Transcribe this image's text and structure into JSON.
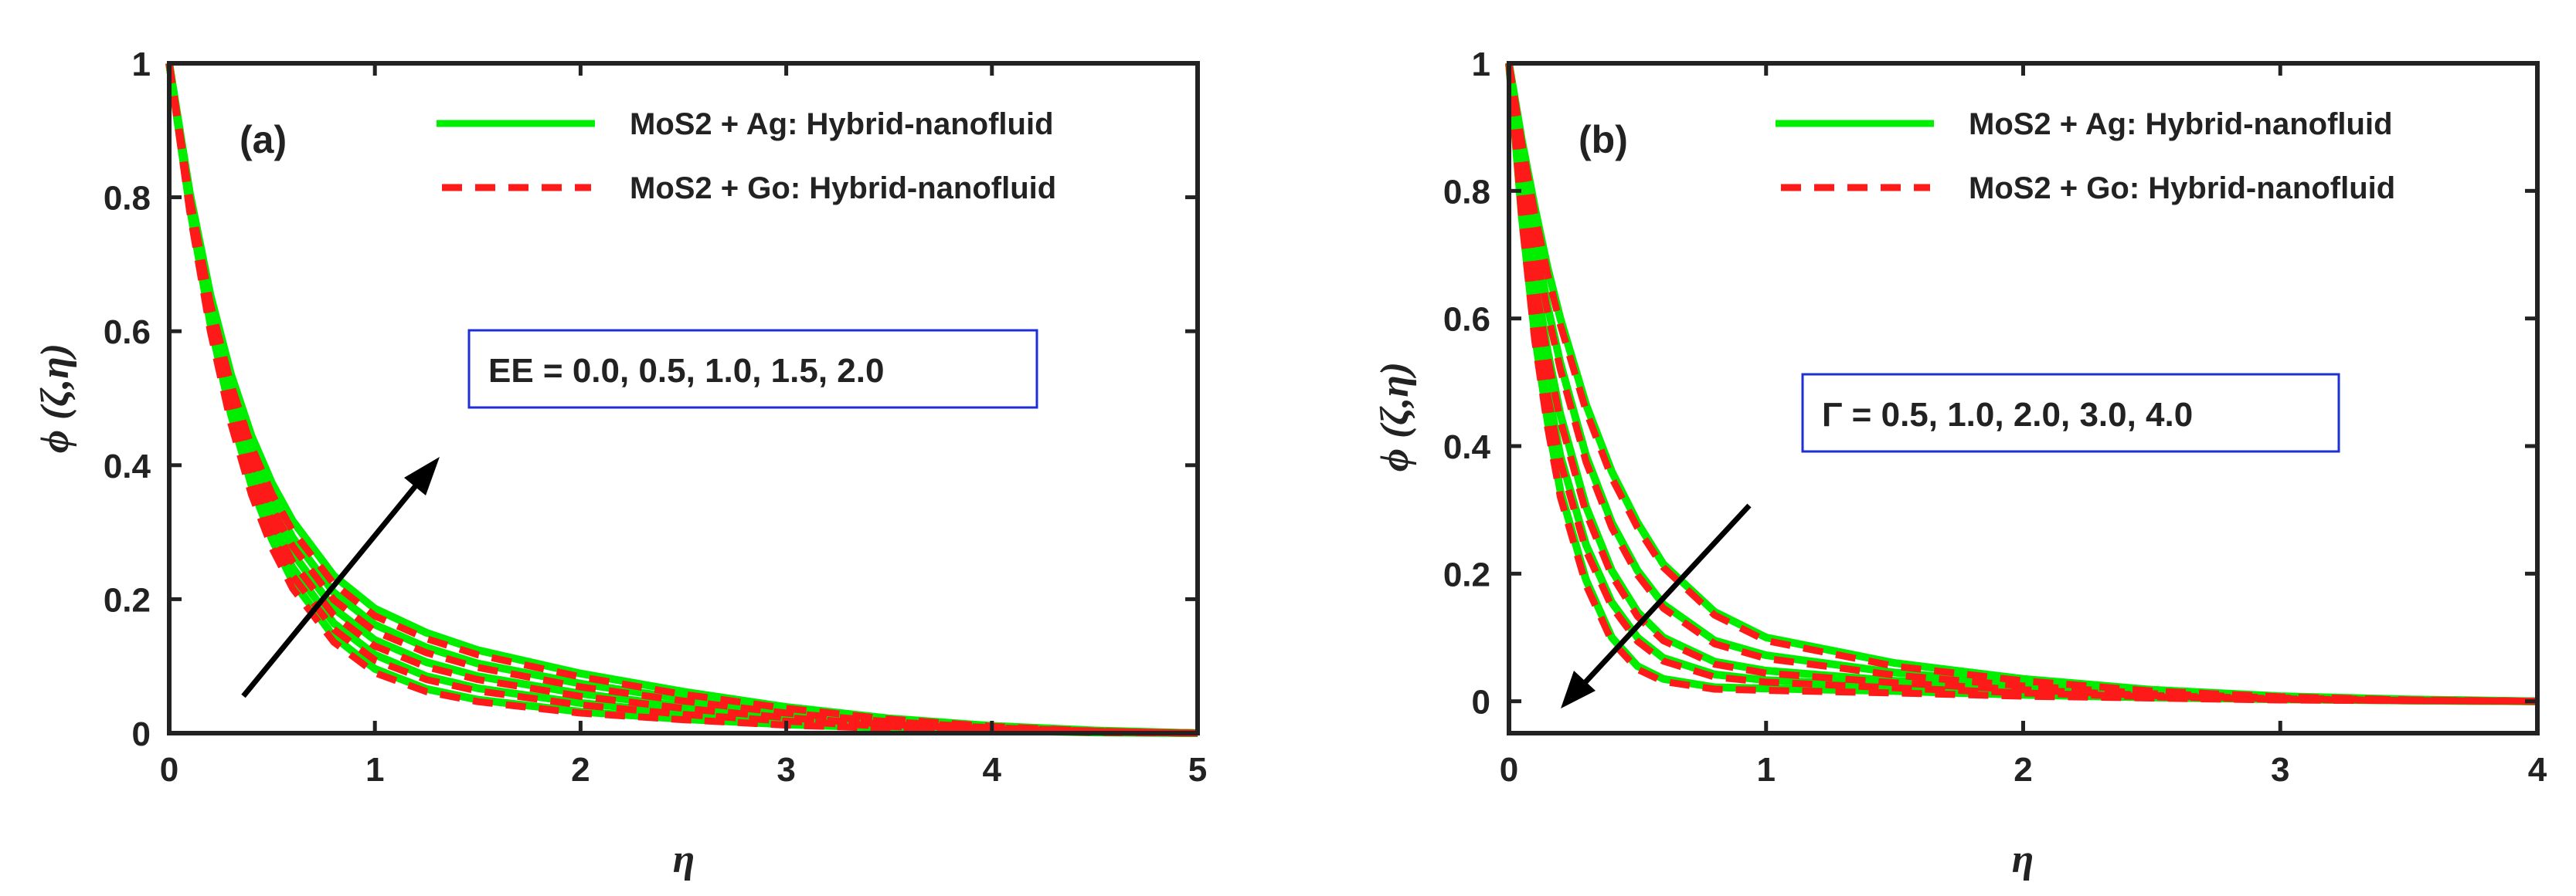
{
  "chart_data": [
    {
      "type": "line",
      "panel_label": "(a)",
      "xlabel": "η",
      "ylabel": "ϕ (ζ,η)",
      "xlim": [
        0,
        5
      ],
      "ylim": [
        0,
        1
      ],
      "xticks": [
        "0",
        "1",
        "2",
        "3",
        "4",
        "5"
      ],
      "yticks": [
        "0",
        "0.2",
        "0.4",
        "0.6",
        "0.8",
        "1"
      ],
      "legend": [
        "MoS2 + Ag: Hybrid-nanofluid",
        "MoS2 + Go: Hybrid-nanofluid"
      ],
      "annotation": "EE = 0.0, 0.5, 1.0, 1.5, 2.0",
      "arrow_direction": "increasing",
      "x": [
        0,
        0.1,
        0.2,
        0.3,
        0.4,
        0.5,
        0.6,
        0.8,
        1.0,
        1.25,
        1.5,
        2.0,
        2.5,
        3.0,
        3.5,
        4.0,
        4.5,
        5.0
      ],
      "series": [
        {
          "name": "MoS2 + Ag: Hybrid-nanofluid, EE = 0.0",
          "values": [
            1.0,
            0.785,
            0.612,
            0.476,
            0.37,
            0.289,
            0.227,
            0.144,
            0.096,
            0.066,
            0.05,
            0.032,
            0.021,
            0.013,
            0.008,
            0.004,
            0.001,
            0
          ]
        },
        {
          "name": "MoS2 + Ag: Hybrid-nanofluid, EE = 0.5",
          "values": [
            1.0,
            0.79,
            0.622,
            0.49,
            0.387,
            0.308,
            0.247,
            0.164,
            0.117,
            0.085,
            0.067,
            0.045,
            0.03,
            0.019,
            0.011,
            0.005,
            0.002,
            0
          ]
        },
        {
          "name": "MoS2 + Ag: Hybrid-nanofluid, EE = 1.0",
          "values": [
            1.0,
            0.796,
            0.633,
            0.505,
            0.405,
            0.328,
            0.269,
            0.186,
            0.139,
            0.106,
            0.085,
            0.059,
            0.04,
            0.025,
            0.014,
            0.007,
            0.002,
            0
          ]
        },
        {
          "name": "MoS2 + Ag: Hybrid-nanofluid, EE = 1.5",
          "values": [
            1.0,
            0.801,
            0.643,
            0.52,
            0.424,
            0.35,
            0.292,
            0.21,
            0.162,
            0.128,
            0.104,
            0.074,
            0.051,
            0.032,
            0.018,
            0.009,
            0.003,
            0
          ]
        },
        {
          "name": "MoS2 + Ag: Hybrid-nanofluid, EE = 2.0",
          "values": [
            1.0,
            0.807,
            0.655,
            0.536,
            0.444,
            0.373,
            0.317,
            0.235,
            0.186,
            0.15,
            0.124,
            0.089,
            0.062,
            0.039,
            0.022,
            0.011,
            0.004,
            0
          ]
        },
        {
          "name": "MoS2 + Go: Hybrid-nanofluid, EE = 0.0",
          "values": [
            1.0,
            0.778,
            0.6,
            0.462,
            0.356,
            0.276,
            0.216,
            0.136,
            0.09,
            0.062,
            0.047,
            0.03,
            0.02,
            0.012,
            0.007,
            0.004,
            0.001,
            0
          ]
        },
        {
          "name": "MoS2 + Go: Hybrid-nanofluid, EE = 0.5",
          "values": [
            1.0,
            0.783,
            0.61,
            0.476,
            0.373,
            0.295,
            0.235,
            0.155,
            0.109,
            0.08,
            0.063,
            0.042,
            0.028,
            0.018,
            0.01,
            0.005,
            0.002,
            0
          ]
        },
        {
          "name": "MoS2 + Go: Hybrid-nanofluid, EE = 1.0",
          "values": [
            1.0,
            0.789,
            0.621,
            0.491,
            0.391,
            0.315,
            0.256,
            0.176,
            0.13,
            0.099,
            0.08,
            0.055,
            0.037,
            0.023,
            0.013,
            0.006,
            0.002,
            0
          ]
        },
        {
          "name": "MoS2 + Go: Hybrid-nanofluid, EE = 1.5",
          "values": [
            1.0,
            0.794,
            0.631,
            0.506,
            0.409,
            0.336,
            0.279,
            0.199,
            0.152,
            0.12,
            0.098,
            0.069,
            0.048,
            0.03,
            0.017,
            0.008,
            0.003,
            0
          ]
        },
        {
          "name": "MoS2 + Go: Hybrid-nanofluid, EE = 2.0",
          "values": [
            1.0,
            0.8,
            0.642,
            0.521,
            0.428,
            0.357,
            0.302,
            0.223,
            0.175,
            0.141,
            0.117,
            0.084,
            0.058,
            0.037,
            0.021,
            0.01,
            0.003,
            0
          ]
        }
      ]
    },
    {
      "type": "line",
      "panel_label": "(b)",
      "xlabel": "η",
      "ylabel": "ϕ (ζ,η)",
      "xlim": [
        0,
        4
      ],
      "ylim": [
        -0.05,
        1
      ],
      "xticks": [
        "0",
        "1",
        "2",
        "3",
        "4"
      ],
      "yticks": [
        "0",
        "0.2",
        "0.4",
        "0.6",
        "0.8",
        "1"
      ],
      "legend": [
        "MoS2 + Ag: Hybrid-nanofluid",
        "MoS2 + Go: Hybrid-nanofluid"
      ],
      "annotation": "Γ = 0.5, 1.0, 2.0, 3.0, 4.0",
      "arrow_direction": "decreasing",
      "x": [
        0,
        0.05,
        0.1,
        0.15,
        0.2,
        0.3,
        0.4,
        0.5,
        0.6,
        0.8,
        1.0,
        1.5,
        2.0,
        2.5,
        3.0,
        3.5,
        4.0
      ],
      "series": [
        {
          "name": "MoS2 + Ag: Hybrid-nanofluid, Γ = 0.5",
          "values": [
            1.0,
            0.88,
            0.775,
            0.68,
            0.6,
            0.465,
            0.36,
            0.28,
            0.215,
            0.14,
            0.1,
            0.06,
            0.035,
            0.018,
            0.008,
            0.003,
            0
          ]
        },
        {
          "name": "MoS2 + Ag: Hybrid-nanofluid, Γ = 1.0",
          "values": [
            1.0,
            0.855,
            0.73,
            0.62,
            0.53,
            0.385,
            0.28,
            0.205,
            0.152,
            0.095,
            0.072,
            0.045,
            0.027,
            0.014,
            0.006,
            0.002,
            0
          ]
        },
        {
          "name": "MoS2 + Ag: Hybrid-nanofluid, Γ = 2.0",
          "values": [
            1.0,
            0.82,
            0.67,
            0.55,
            0.45,
            0.305,
            0.205,
            0.14,
            0.1,
            0.062,
            0.048,
            0.032,
            0.02,
            0.01,
            0.005,
            0.002,
            0
          ]
        },
        {
          "name": "MoS2 + Ag: Hybrid-nanofluid, Γ = 3.0",
          "values": [
            1.0,
            0.79,
            0.62,
            0.49,
            0.385,
            0.245,
            0.155,
            0.1,
            0.068,
            0.042,
            0.033,
            0.024,
            0.015,
            0.008,
            0.004,
            0.001,
            0
          ]
        },
        {
          "name": "MoS2 + Ag: Hybrid-nanofluid, Γ = 4.0",
          "values": [
            1.0,
            0.76,
            0.575,
            0.44,
            0.33,
            0.19,
            0.1,
            0.055,
            0.035,
            0.022,
            0.02,
            0.016,
            0.01,
            0.006,
            0.003,
            0.001,
            0
          ]
        },
        {
          "name": "MoS2 + Go: Hybrid-nanofluid, Γ = 0.5",
          "values": [
            1.0,
            0.875,
            0.765,
            0.67,
            0.59,
            0.455,
            0.35,
            0.272,
            0.21,
            0.135,
            0.095,
            0.055,
            0.032,
            0.016,
            0.007,
            0.002,
            0
          ]
        },
        {
          "name": "MoS2 + Go: Hybrid-nanofluid, Γ = 1.0",
          "values": [
            1.0,
            0.85,
            0.72,
            0.61,
            0.52,
            0.375,
            0.272,
            0.198,
            0.146,
            0.09,
            0.067,
            0.041,
            0.024,
            0.012,
            0.005,
            0.002,
            0
          ]
        },
        {
          "name": "MoS2 + Go: Hybrid-nanofluid, Γ = 2.0",
          "values": [
            1.0,
            0.815,
            0.66,
            0.54,
            0.44,
            0.295,
            0.197,
            0.133,
            0.095,
            0.058,
            0.044,
            0.029,
            0.018,
            0.009,
            0.004,
            0.001,
            0
          ]
        },
        {
          "name": "MoS2 + Go: Hybrid-nanofluid, Γ = 3.0",
          "values": [
            1.0,
            0.785,
            0.612,
            0.48,
            0.375,
            0.236,
            0.148,
            0.094,
            0.063,
            0.038,
            0.03,
            0.021,
            0.013,
            0.007,
            0.003,
            0.001,
            0
          ]
        },
        {
          "name": "MoS2 + Go: Hybrid-nanofluid, Γ = 4.0",
          "values": [
            1.0,
            0.755,
            0.566,
            0.43,
            0.32,
            0.182,
            0.094,
            0.05,
            0.031,
            0.019,
            0.017,
            0.013,
            0.008,
            0.005,
            0.002,
            0.001,
            0
          ]
        }
      ]
    }
  ],
  "colors": {
    "ag_line": "#00ee00",
    "go_line": "#ff1a1a",
    "axis": "#222222",
    "annotation_border": "#1f2fd6"
  }
}
